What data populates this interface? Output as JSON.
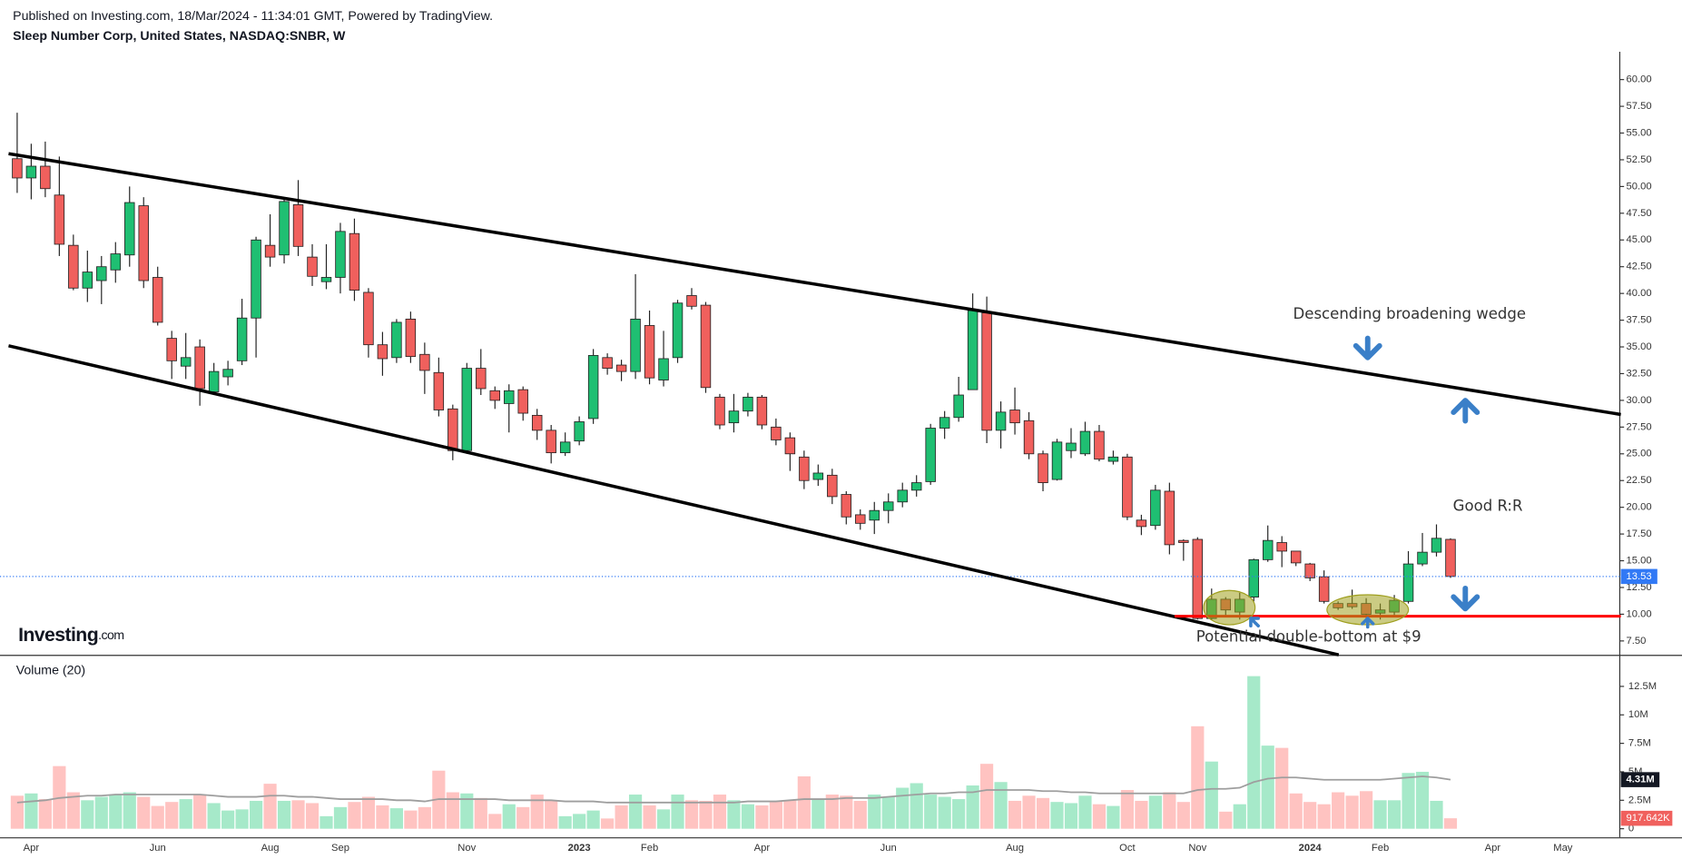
{
  "header": {
    "published": "Published on Investing.com, 18/Mar/2024 - 11:34:01 GMT, Powered by TradingView.",
    "symbol": "Sleep Number Corp, United States, NASDAQ:SNBR, W"
  },
  "logo": {
    "main": "Investing",
    "suffix": ".com"
  },
  "chart_data": [
    {
      "type": "candlestick",
      "categories": [
        null,
        "Apr",
        null,
        null,
        null,
        null,
        null,
        null,
        null,
        null,
        "Jun",
        null,
        null,
        null,
        null,
        null,
        null,
        null,
        "Aug",
        null,
        null,
        null,
        null,
        "Sep",
        null,
        null,
        null,
        null,
        null,
        null,
        null,
        null,
        "Nov",
        null,
        null,
        null,
        null,
        null,
        null,
        null,
        "2023",
        null,
        null,
        null,
        null,
        "Feb",
        null,
        null,
        null,
        null,
        null,
        null,
        null,
        "Apr",
        null,
        null,
        null,
        null,
        null,
        null,
        null,
        null,
        "Jun",
        null,
        null,
        null,
        null,
        null,
        null,
        null,
        null,
        "Aug",
        null,
        null,
        null,
        null,
        null,
        null,
        null,
        "Oct",
        null,
        null,
        null,
        null,
        "Nov",
        null,
        null,
        null,
        null,
        null,
        null,
        null,
        "2024",
        null,
        null,
        null,
        null,
        "Feb",
        null,
        null,
        null,
        null,
        null,
        null,
        null,
        "Apr",
        null,
        null,
        null,
        null,
        "May",
        null
      ],
      "open": [
        52.6,
        50.8,
        51.9,
        49.2,
        44.5,
        40.5,
        41.2,
        42.2,
        43.6,
        48.2,
        41.5,
        35.8,
        33.2,
        35,
        30.8,
        32.2,
        33.7,
        37.7,
        44.5,
        43.6,
        48.3,
        43.4,
        41.1,
        41.5,
        45.6,
        40.1,
        35.2,
        34,
        37.6,
        34.3,
        32.6,
        29.2,
        25.3,
        33,
        30.9,
        29.7,
        31,
        28.6,
        27.2,
        25.1,
        26.2,
        28.3,
        34,
        33.3,
        32.7,
        37,
        31.9,
        34,
        39.8,
        38.9,
        30.3,
        27.9,
        29,
        30.3,
        27.5,
        26.5,
        24.7,
        22.6,
        23,
        21.2,
        19.3,
        18.8,
        19.7,
        20.5,
        21.6,
        22.4,
        27.4,
        28.4,
        31,
        38.2,
        27.2,
        29.1,
        28.1,
        25,
        22.6,
        25.3,
        25,
        27.1,
        24.3,
        24.7,
        18.8,
        18.3,
        21.5,
        16.9,
        17,
        9.6,
        11.4,
        10.2,
        11.6,
        15.1,
        16.7,
        15.9,
        14.7,
        13.5,
        11,
        11,
        11,
        10.1,
        10.2,
        11.2,
        14.7,
        15.8,
        17,
        null,
        null,
        null,
        null,
        null,
        null,
        null,
        null,
        null
      ],
      "high": [
        56.9,
        54,
        54.2,
        52.8,
        45.5,
        44,
        43.5,
        44.8,
        50,
        49,
        42.5,
        36.5,
        36.3,
        35.7,
        33.5,
        33.7,
        39.5,
        45.3,
        47.4,
        49,
        50.6,
        44.6,
        44.6,
        46.6,
        47,
        40.5,
        36.4,
        37.6,
        38.3,
        35.4,
        34,
        29.6,
        33.5,
        34.8,
        31.3,
        31.5,
        31.3,
        29.2,
        27.7,
        27,
        28.5,
        34.8,
        34.4,
        33.8,
        41.8,
        38.4,
        36.5,
        39.4,
        40.5,
        39.2,
        30.6,
        30.6,
        30.7,
        30.5,
        28.3,
        27,
        25.3,
        24,
        23.6,
        21.5,
        19.8,
        20.5,
        21.3,
        22.3,
        23,
        27.8,
        29,
        32.2,
        40,
        39.7,
        29.9,
        31.2,
        28.9,
        25.3,
        26.4,
        27.4,
        28,
        27.7,
        25.3,
        25,
        19.3,
        22.1,
        22.3,
        17,
        17.2,
        12.4,
        11.6,
        12,
        15.2,
        18.3,
        17.3,
        15.9,
        14.8,
        14.1,
        11.2,
        12.3,
        11.5,
        11,
        11.8,
        15.9,
        17.6,
        18.4,
        17.1,
        null,
        null,
        null,
        null,
        null,
        null,
        null,
        null,
        null
      ],
      "low": [
        49.4,
        48.8,
        49,
        43.5,
        40.3,
        39.2,
        39,
        41,
        42.5,
        40.5,
        37,
        32,
        32,
        29.5,
        30.5,
        31.4,
        33.3,
        34,
        42.5,
        42.8,
        43.5,
        40.7,
        40.4,
        40,
        39.3,
        34,
        32.3,
        33.5,
        33.5,
        30.6,
        28.5,
        24.4,
        25,
        30.5,
        29.2,
        27,
        28.1,
        26.3,
        24.1,
        24.8,
        25.8,
        27.8,
        32.4,
        31.8,
        32,
        31.5,
        31.3,
        33.5,
        38.5,
        30.7,
        27.3,
        27,
        28.5,
        27.3,
        25.8,
        23.4,
        21.7,
        22,
        20.3,
        18.4,
        17.9,
        17.5,
        18.5,
        20,
        21,
        22.1,
        26.4,
        28,
        31,
        26,
        25.5,
        26.8,
        24.5,
        21.5,
        22.5,
        24.6,
        24.8,
        24.3,
        24,
        18.8,
        17.4,
        17.9,
        15.6,
        15,
        9.5,
        9.5,
        9.8,
        9.5,
        11.2,
        14.9,
        14.4,
        14.5,
        13.1,
        11,
        10.4,
        10.5,
        9.3,
        9.5,
        9.8,
        11,
        14.5,
        15.4,
        13.4,
        null,
        null,
        null,
        null,
        null,
        null,
        null,
        null,
        null
      ],
      "close": [
        50.8,
        51.9,
        49.8,
        44.6,
        40.5,
        42,
        42.5,
        43.7,
        48.5,
        41.2,
        37.3,
        33.7,
        34,
        31.1,
        32.7,
        32.9,
        37.7,
        45,
        43.4,
        48.6,
        44.4,
        41.6,
        41.5,
        45.8,
        40.3,
        35.2,
        33.9,
        37.3,
        34.1,
        32.8,
        29.1,
        25.3,
        33,
        31.1,
        30,
        30.9,
        28.8,
        27.2,
        25.1,
        26.1,
        28,
        34.2,
        33,
        32.7,
        37.6,
        32.1,
        33.9,
        39.1,
        38.8,
        31.2,
        27.7,
        29,
        30.3,
        27.7,
        26.3,
        25,
        22.5,
        23.2,
        21,
        19.1,
        18.5,
        19.7,
        20.5,
        21.6,
        22.3,
        27.4,
        28.4,
        30.5,
        38.4,
        27.2,
        28.9,
        27.9,
        25,
        22.3,
        26.1,
        26,
        27.1,
        24.5,
        24.7,
        19.1,
        18.2,
        21.6,
        16.5,
        16.7,
        9.6,
        11.4,
        10.4,
        11.4,
        15.1,
        16.9,
        15.9,
        14.8,
        13.4,
        11.2,
        10.6,
        10.7,
        10,
        10.4,
        11.3,
        14.7,
        15.8,
        17.1,
        13.53,
        null,
        null,
        null,
        null,
        null,
        null,
        null,
        null,
        null
      ],
      "up_color": "#1fbf72",
      "down_color": "#f0605d",
      "last_color": "#3179f5",
      "ylim": [
        6.2,
        62.6
      ],
      "yticks": [
        {
          "value": 7.5,
          "label": "7.50"
        },
        {
          "value": 10,
          "label": "10.00"
        },
        {
          "value": 12.5,
          "label": "12.50"
        },
        {
          "value": 15,
          "label": "15.00"
        },
        {
          "value": 17.5,
          "label": "17.50"
        },
        {
          "value": 20,
          "label": "20.00"
        },
        {
          "value": 22.5,
          "label": "22.50"
        },
        {
          "value": 25,
          "label": "25.00"
        },
        {
          "value": 27.5,
          "label": "27.50"
        },
        {
          "value": 30,
          "label": "30.00"
        },
        {
          "value": 32.5,
          "label": "32.50"
        },
        {
          "value": 35,
          "label": "35.00"
        },
        {
          "value": 37.5,
          "label": "37.50"
        },
        {
          "value": 40,
          "label": "40.00"
        },
        {
          "value": 42.5,
          "label": "42.50"
        },
        {
          "value": 45,
          "label": "45.00"
        },
        {
          "value": 47.5,
          "label": "47.50"
        },
        {
          "value": 50,
          "label": "50.00"
        },
        {
          "value": 52.5,
          "label": "52.50"
        },
        {
          "value": 55,
          "label": "55.00"
        },
        {
          "value": 57.5,
          "label": "57.50"
        },
        {
          "value": 60,
          "label": "60.00"
        }
      ],
      "annotations": [
        "Descending broadening wedge",
        "Good R:R",
        "Potential double-bottom at $9"
      ]
    },
    {
      "type": "bar",
      "title": "Volume (20)",
      "values": [
        2.9,
        3.1,
        2.6,
        5.5,
        3.2,
        2.5,
        2.8,
        3.0,
        3.2,
        2.8,
        2.0,
        2.35,
        2.6,
        3.0,
        2.25,
        1.6,
        1.7,
        2.45,
        3.95,
        2.45,
        2.5,
        2.25,
        1.1,
        1.9,
        2.35,
        2.8,
        2.05,
        1.8,
        1.6,
        1.9,
        5.1,
        3.2,
        3.1,
        2.7,
        1.3,
        2.15,
        1.9,
        3.0,
        2.5,
        1.1,
        1.3,
        1.6,
        0.9,
        2.05,
        3.0,
        2.05,
        1.7,
        3.0,
        2.5,
        2.45,
        3.0,
        2.5,
        2.15,
        2.05,
        2.45,
        2.5,
        4.6,
        2.6,
        3.0,
        2.9,
        2.45,
        3.0,
        2.8,
        3.6,
        4.0,
        3.0,
        2.8,
        2.6,
        3.8,
        5.7,
        4.1,
        2.45,
        2.9,
        2.7,
        2.35,
        2.25,
        2.9,
        2.15,
        2.0,
        3.4,
        2.45,
        2.9,
        3.2,
        2.35,
        9.0,
        5.9,
        1.5,
        2.15,
        13.4,
        7.3,
        7.1,
        3.1,
        2.35,
        2.15,
        3.2,
        2.9,
        3.3,
        2.5,
        2.5,
        4.9,
        5.0,
        2.45,
        0.917642,
        null,
        null,
        null,
        null,
        null,
        null,
        null,
        null,
        null
      ],
      "ma_values": [
        2.3,
        2.4,
        2.5,
        2.7,
        2.8,
        2.9,
        2.9,
        3.0,
        3.0,
        3.0,
        3.0,
        3.0,
        3.0,
        3.0,
        2.9,
        2.8,
        2.8,
        2.8,
        2.9,
        2.9,
        2.8,
        2.8,
        2.7,
        2.6,
        2.6,
        2.6,
        2.6,
        2.5,
        2.5,
        2.4,
        2.6,
        2.6,
        2.6,
        2.6,
        2.6,
        2.5,
        2.5,
        2.5,
        2.5,
        2.4,
        2.4,
        2.4,
        2.3,
        2.3,
        2.3,
        2.3,
        2.3,
        2.3,
        2.3,
        2.3,
        2.3,
        2.3,
        2.4,
        2.4,
        2.4,
        2.5,
        2.6,
        2.6,
        2.6,
        2.7,
        2.7,
        2.7,
        2.8,
        2.9,
        3.0,
        3.1,
        3.1,
        3.2,
        3.2,
        3.4,
        3.4,
        3.4,
        3.4,
        3.3,
        3.3,
        3.2,
        3.2,
        3.1,
        3.1,
        3.1,
        3.1,
        3.1,
        3.1,
        3.1,
        3.4,
        3.5,
        3.5,
        3.6,
        4.1,
        4.4,
        4.5,
        4.5,
        4.4,
        4.3,
        4.3,
        4.3,
        4.3,
        4.3,
        4.4,
        4.5,
        4.6,
        4.5,
        4.31,
        null,
        null,
        null,
        null,
        null,
        null,
        null,
        null,
        null
      ],
      "value_label": "917.642K",
      "ma_label": "4.31M",
      "up_color": "#a6e9c9",
      "down_color": "#ffc3c1",
      "ma_color": "#9e9e9e",
      "ma_label_color": "#131722",
      "ylim": [
        -0.75,
        14.8
      ],
      "yticks": [
        0,
        {
          "value": 2.5,
          "label": "2.5M"
        },
        {
          "value": 5,
          "label": "5M"
        },
        {
          "value": 7.5,
          "label": "7.5M"
        },
        {
          "value": 10,
          "label": "10M"
        },
        {
          "value": 12.5,
          "label": "12.5M"
        }
      ]
    }
  ]
}
